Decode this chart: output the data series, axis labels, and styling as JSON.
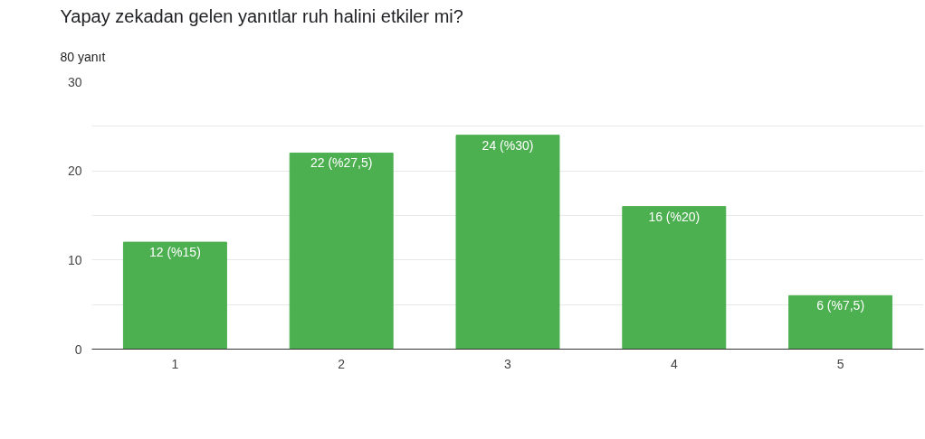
{
  "chart_data": {
    "type": "bar",
    "title": "Yapay zekadan gelen yanıtlar ruh halini etkiler mi?",
    "subtitle": "80 yanıt",
    "categories": [
      "1",
      "2",
      "3",
      "4",
      "5"
    ],
    "values": [
      12,
      22,
      24,
      16,
      6
    ],
    "value_labels": [
      "12 (%15)",
      "22 (%27,5)",
      "24 (%30)",
      "16 (%20)",
      "6 (%7,5)"
    ],
    "color": "#4caf50",
    "ylim": [
      0,
      30
    ],
    "yticks": [
      0,
      {
        "value": 5,
        "label": null
      },
      10,
      {
        "value": 15,
        "label": null
      },
      20,
      {
        "value": 25,
        "label": null
      },
      30
    ],
    "grid": "y"
  }
}
